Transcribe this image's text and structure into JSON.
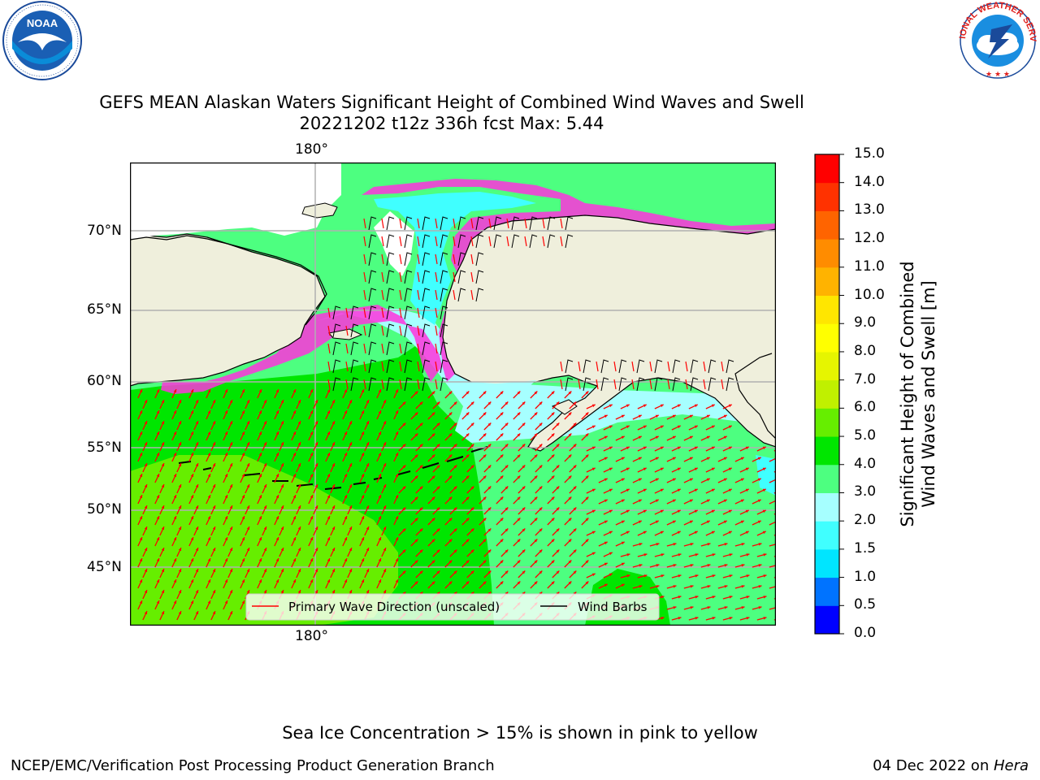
{
  "title_line1": "GEFS MEAN Alaskan Waters Significant Height of Combined Wind Waves and Swell",
  "title_line2": "20221202 t12z 336h fcst   Max: 5.44",
  "logos": {
    "left": {
      "name": "noaa-logo",
      "text": "NOAA",
      "ring_text": "NATIONAL OCEANIC AND ATMOSPHERIC ADMINISTRATION · U.S. DEPARTMENT OF COMMERCE"
    },
    "right": {
      "name": "nws-logo",
      "ring_text": "NATIONAL WEATHER SERVICE"
    }
  },
  "map": {
    "lon_top_label": "180°",
    "lon_bottom_label": "180°",
    "lat_labels": [
      "70°N",
      "65°N",
      "60°N",
      "55°N",
      "50°N",
      "45°N"
    ],
    "land_color": "#efefdc",
    "grid_color": "#b0b0b0",
    "legend": {
      "wave_direction": "Primary Wave Direction (unscaled)",
      "wind_barbs": "Wind Barbs",
      "wave_color": "#ff0000",
      "barb_color": "#000000"
    }
  },
  "colorbar": {
    "label_line1": "Significant Height of Combined",
    "label_line2": "Wind Waves and Swell [m]",
    "ticks": [
      "0.0",
      "0.5",
      "1.0",
      "1.5",
      "2.0",
      "3.0",
      "4.0",
      "5.0",
      "6.0",
      "7.0",
      "8.0",
      "9.0",
      "10.0",
      "11.0",
      "12.0",
      "13.0",
      "14.0",
      "15.0"
    ],
    "colors": [
      "#0000ff",
      "#0073ff",
      "#00e5ff",
      "#40ffff",
      "#a6ffff",
      "#4dff80",
      "#00e600",
      "#66ee00",
      "#c0f000",
      "#e6f500",
      "#ffff00",
      "#ffe600",
      "#ffb300",
      "#ff8c00",
      "#ff6400",
      "#ff3200",
      "#ff0000"
    ]
  },
  "sea_ice_note": "Sea Ice Concentration > 15% is shown in pink to yellow",
  "footer_left": "NCEP/EMC/Verification Post Processing Product Generation Branch",
  "footer_right_date": "04 Dec 2022 on ",
  "footer_right_host": "Hera"
}
